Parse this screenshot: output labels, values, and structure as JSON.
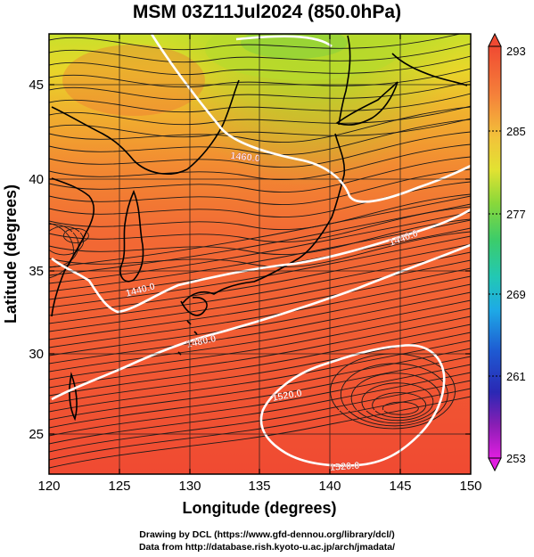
{
  "title": "MSM 03Z11Jul2024 (850.0hPa)",
  "x_axis": {
    "label": "Longitude (degrees)",
    "ticks": [
      "120",
      "125",
      "130",
      "135",
      "140",
      "145",
      "150"
    ]
  },
  "y_axis": {
    "label": "Latitude (degrees)",
    "ticks": [
      "25",
      "30",
      "35",
      "40",
      "45"
    ]
  },
  "colorbar": {
    "tick_labels": [
      "293",
      "285",
      "277",
      "269",
      "261",
      "253"
    ],
    "colors": [
      "#f25a3c",
      "#f59a3c",
      "#e6e632",
      "#5fdc4a",
      "#28c8a0",
      "#1e9be6",
      "#1e46c8",
      "#5a1eaa",
      "#e01ee0"
    ]
  },
  "contour_labels": {
    "c1": "1460.0",
    "c2": "1440.0",
    "c3": "1440.0",
    "c4": "1480.0",
    "c5": "1520.0",
    "c6": "1520.0"
  },
  "credits": {
    "line1": "Drawing by DCL (https://www.gfd-dennou.org/library/dcl/)",
    "line2": "Data from http://database.rish.kyoto-u.ac.jp/arch/jmadata/"
  },
  "colors": {
    "field_warm": "#f04a32",
    "field_mid": "#f28a32",
    "field_cool": "#d6df2a",
    "contour": "#ffffff",
    "coast": "#000000"
  }
}
